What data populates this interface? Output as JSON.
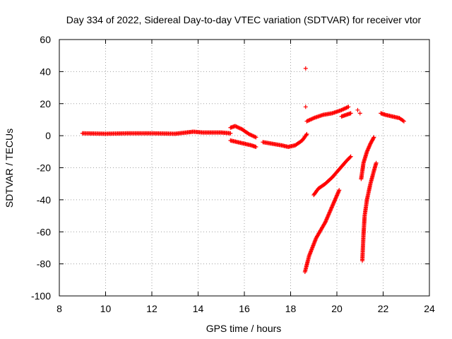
{
  "chart_data": {
    "type": "scatter",
    "title": "Day 334 of 2022, Sidereal Day-to-day VTEC variation (SDTVAR) for receiver vtor",
    "xlabel": "GPS time / hours",
    "ylabel": "SDTVAR / TECUs",
    "xlim": [
      8,
      24
    ],
    "ylim": [
      -100,
      60
    ],
    "xticks": [
      "8",
      "10",
      "12",
      "14",
      "16",
      "18",
      "20",
      "22",
      "24"
    ],
    "yticks": [
      "60",
      "40",
      "20",
      "0",
      "-20",
      "-40",
      "-60",
      "-80",
      "-100"
    ],
    "grid": true,
    "marker": "+",
    "color": "#ff0000",
    "segments": [
      {
        "x": [
          9.0,
          10.0,
          11.0,
          12.0,
          13.0,
          13.5,
          13.8,
          14.2,
          14.6,
          15.0,
          15.4
        ],
        "y": [
          1.5,
          1.2,
          1.5,
          1.5,
          1.2,
          2.0,
          2.5,
          2.0,
          2.0,
          2.0,
          1.5
        ]
      },
      {
        "x": [
          15.4,
          15.6,
          15.9,
          16.2,
          16.5
        ],
        "y": [
          5,
          6,
          4,
          1,
          -1
        ]
      },
      {
        "x": [
          15.4,
          15.7,
          16.0,
          16.3,
          16.5
        ],
        "y": [
          -3,
          -4,
          -5,
          -6,
          -7
        ]
      },
      {
        "x": [
          16.8,
          17.2,
          17.6,
          17.9,
          18.2,
          18.5,
          18.7
        ],
        "y": [
          -4,
          -5,
          -6,
          -7,
          -6,
          -3,
          1
        ]
      },
      {
        "x": [
          18.7,
          19.0,
          19.4,
          19.8,
          20.2,
          20.5
        ],
        "y": [
          9,
          11,
          13,
          14,
          16,
          18
        ]
      },
      {
        "x": [
          20.2,
          20.4,
          20.6
        ],
        "y": [
          12,
          13,
          14
        ]
      },
      {
        "x": [
          18.62,
          18.8,
          19.1,
          19.5,
          19.8,
          20.1
        ],
        "y": [
          -85,
          -75,
          -64,
          -54,
          -44,
          -34
        ]
      },
      {
        "x": [
          19.0,
          19.2,
          19.5,
          19.8,
          20.1,
          20.4,
          20.6
        ],
        "y": [
          -37,
          -33,
          -30,
          -26,
          -21,
          -16,
          -13
        ]
      },
      {
        "x": [
          21.05,
          21.15,
          21.3,
          21.45,
          21.6
        ],
        "y": [
          -27,
          -17,
          -10,
          -5,
          -1
        ]
      },
      {
        "x": [
          21.1,
          21.15,
          21.2,
          21.3,
          21.45,
          21.6,
          21.7
        ],
        "y": [
          -78,
          -62,
          -50,
          -40,
          -30,
          -22,
          -17
        ]
      },
      {
        "x": [
          21.9,
          22.1,
          22.4,
          22.7,
          22.9
        ],
        "y": [
          14,
          13,
          12,
          11,
          9
        ]
      }
    ],
    "outliers": [
      {
        "x": 18.65,
        "y": 42
      },
      {
        "x": 18.65,
        "y": 18
      },
      {
        "x": 20.9,
        "y": 16
      },
      {
        "x": 21.0,
        "y": 14
      }
    ]
  }
}
